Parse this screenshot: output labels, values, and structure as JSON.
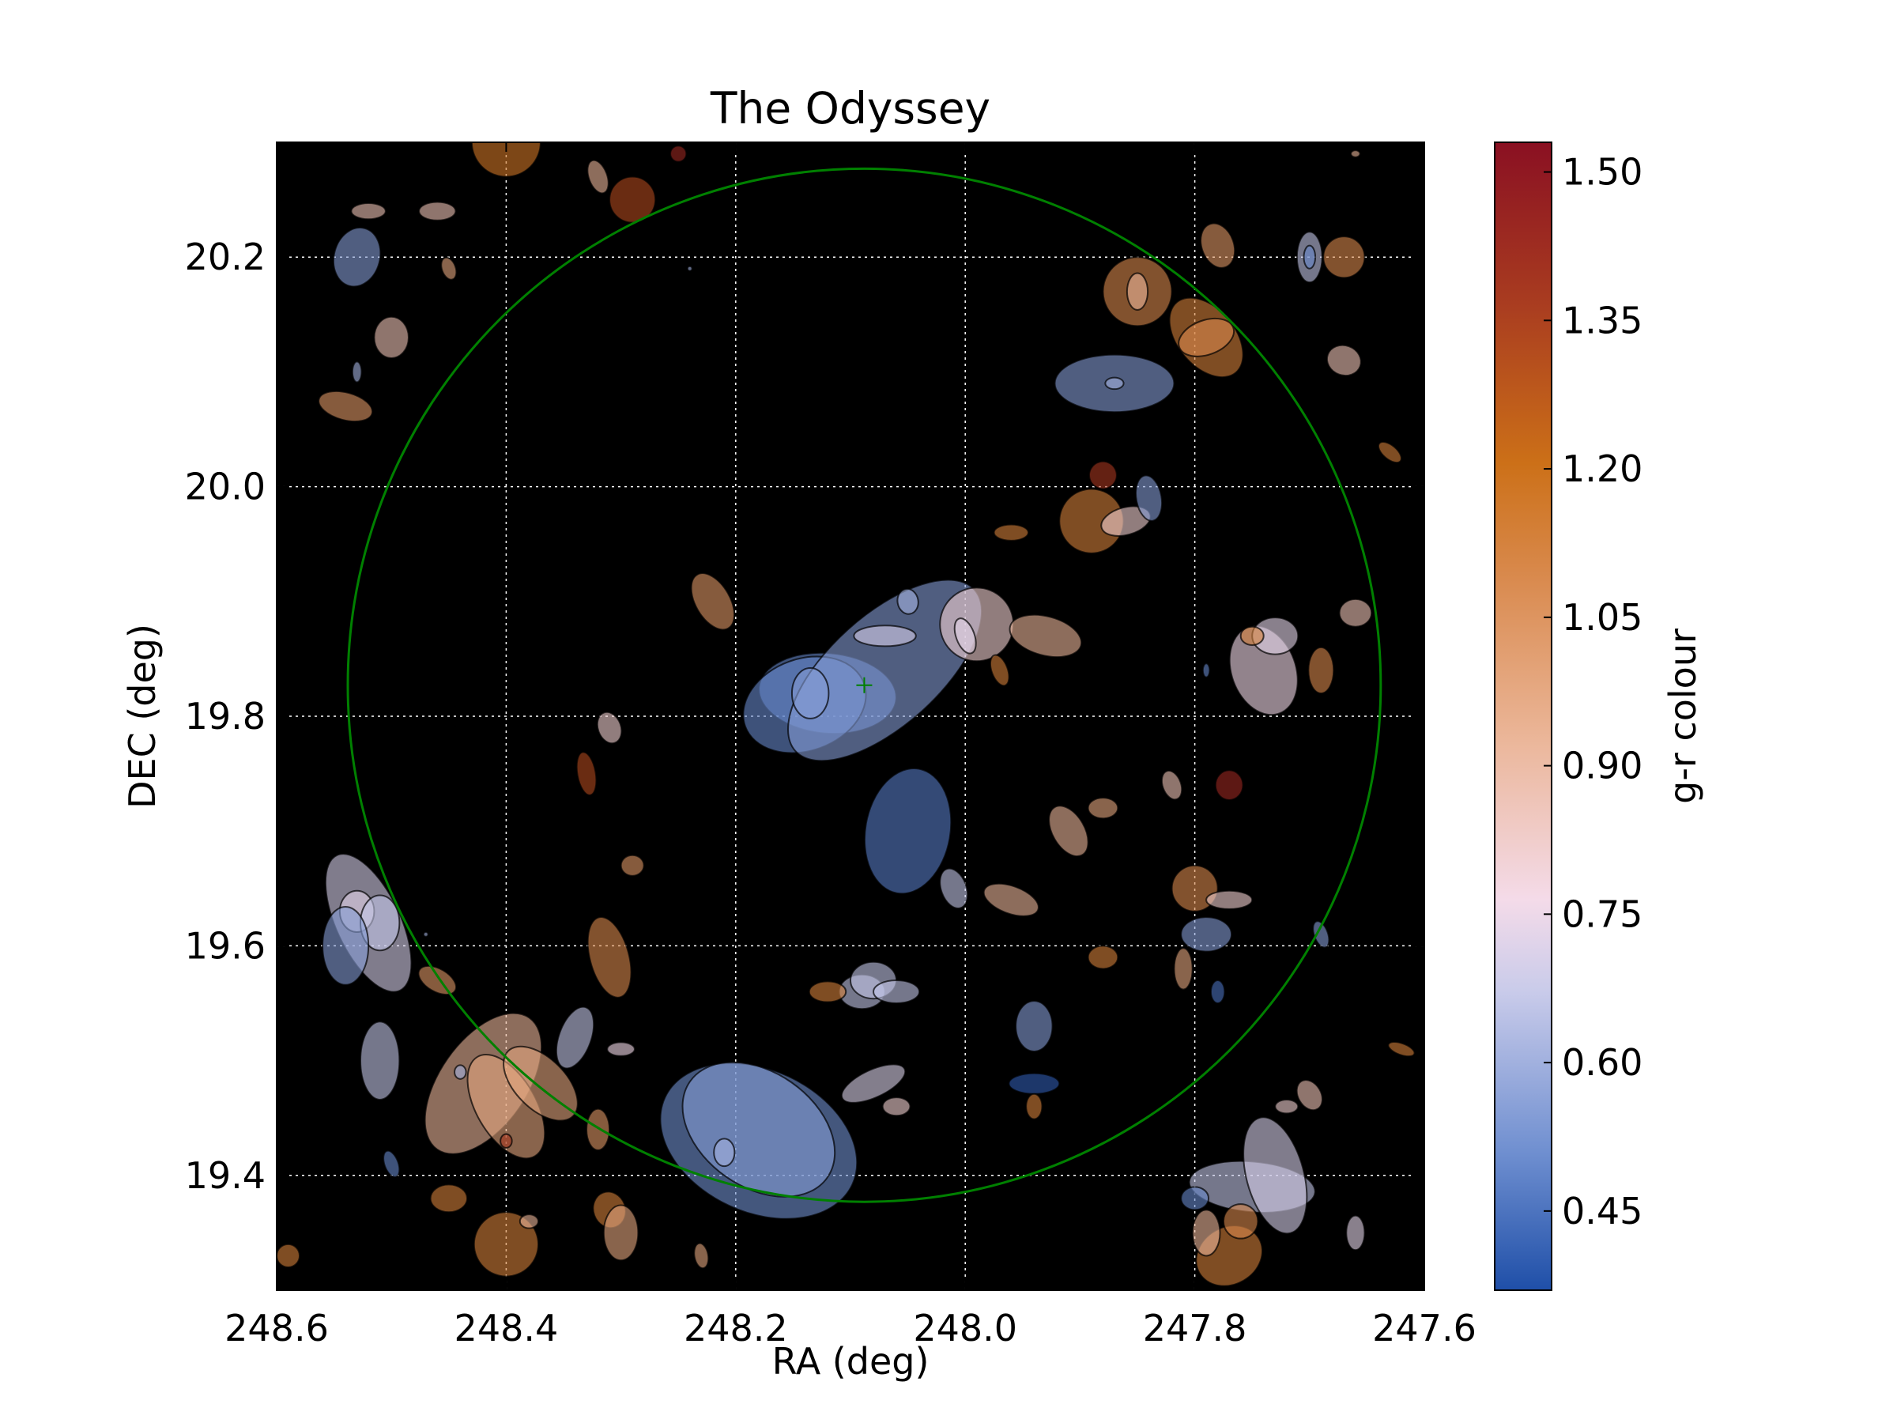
{
  "chart_data": {
    "type": "scatter",
    "title": "The Odyssey",
    "xlabel": "RA (deg)",
    "ylabel": "DEC (deg)",
    "xlim": [
      248.6,
      247.6
    ],
    "ylim": [
      19.3,
      20.3
    ],
    "x_ticks": [
      "248.6",
      "248.4",
      "248.2",
      "248.0",
      "247.8",
      "247.6"
    ],
    "y_ticks": [
      "19.4",
      "19.6",
      "19.8",
      "20.0",
      "20.2"
    ],
    "grid": true,
    "plot_background": "#000000",
    "colorbar": {
      "label": "g-r colour",
      "range": [
        0.37,
        1.53
      ],
      "ticks": [
        "0.45",
        "0.60",
        "0.75",
        "0.90",
        "1.05",
        "1.20",
        "1.35",
        "1.50"
      ],
      "colormap": [
        "#1f4fa8",
        "#6f8fd0",
        "#c9cbea",
        "#f4dbe9",
        "#ebb699",
        "#d98a4e",
        "#cc7018",
        "#a93c20",
        "#8a1022"
      ]
    },
    "search_circle": {
      "center_ra": 248.088,
      "center_dec": 19.827,
      "radius_deg": 0.45,
      "color": "#008000"
    },
    "center_marker": {
      "ra": 248.088,
      "dec": 19.827,
      "marker": "+"
    },
    "galaxies": [
      {
        "ra": 248.12,
        "dec": 19.82,
        "a": 0.06,
        "b": 0.035,
        "angle": -5,
        "gr": 0.5
      },
      {
        "ra": 248.14,
        "dec": 19.81,
        "a": 0.055,
        "b": 0.04,
        "angle": 20,
        "gr": 0.5
      },
      {
        "ra": 248.07,
        "dec": 19.84,
        "a": 0.105,
        "b": 0.048,
        "angle": 42,
        "gr": 0.55
      },
      {
        "ra": 248.07,
        "dec": 19.87,
        "a": 0.027,
        "b": 0.009,
        "angle": 0,
        "gr": 0.7
      },
      {
        "ra": 248.135,
        "dec": 19.82,
        "a": 0.016,
        "b": 0.022,
        "angle": 0,
        "gr": 0.55
      },
      {
        "ra": 248.05,
        "dec": 19.7,
        "a": 0.037,
        "b": 0.055,
        "angle": -10,
        "gr": 0.47
      },
      {
        "ra": 248.18,
        "dec": 19.43,
        "a": 0.09,
        "b": 0.062,
        "angle": -25,
        "gr": 0.52
      },
      {
        "ra": 248.18,
        "dec": 19.44,
        "a": 0.073,
        "b": 0.05,
        "angle": -35,
        "gr": 0.55
      },
      {
        "ra": 248.21,
        "dec": 19.42,
        "a": 0.009,
        "b": 0.012,
        "angle": 0,
        "gr": 0.6
      },
      {
        "ra": 248.08,
        "dec": 19.48,
        "a": 0.03,
        "b": 0.012,
        "angle": 25,
        "gr": 0.72
      },
      {
        "ra": 248.06,
        "dec": 19.46,
        "a": 0.012,
        "b": 0.008,
        "angle": 0,
        "gr": 0.85
      },
      {
        "ra": 247.87,
        "dec": 20.09,
        "a": 0.052,
        "b": 0.025,
        "angle": 0,
        "gr": 0.55
      },
      {
        "ra": 247.87,
        "dec": 20.09,
        "a": 0.008,
        "b": 0.005,
        "angle": 0,
        "gr": 0.6
      },
      {
        "ra": 247.85,
        "dec": 20.17,
        "a": 0.03,
        "b": 0.03,
        "angle": 0,
        "gr": 1.1
      },
      {
        "ra": 247.85,
        "dec": 20.17,
        "a": 0.009,
        "b": 0.016,
        "angle": 0,
        "gr": 0.95
      },
      {
        "ra": 247.79,
        "dec": 20.13,
        "a": 0.025,
        "b": 0.04,
        "angle": 40,
        "gr": 1.15
      },
      {
        "ra": 247.79,
        "dec": 20.13,
        "a": 0.025,
        "b": 0.015,
        "angle": 20,
        "gr": 1.1
      },
      {
        "ra": 247.78,
        "dec": 20.21,
        "a": 0.014,
        "b": 0.02,
        "angle": 20,
        "gr": 1.05
      },
      {
        "ra": 247.7,
        "dec": 20.2,
        "a": 0.011,
        "b": 0.022,
        "angle": 0,
        "gr": 0.65
      },
      {
        "ra": 247.7,
        "dec": 20.2,
        "a": 0.005,
        "b": 0.01,
        "angle": 0,
        "gr": 0.5
      },
      {
        "ra": 247.67,
        "dec": 20.2,
        "a": 0.018,
        "b": 0.018,
        "angle": 0,
        "gr": 1.1
      },
      {
        "ra": 247.67,
        "dec": 20.11,
        "a": 0.015,
        "b": 0.013,
        "angle": -20,
        "gr": 0.9
      },
      {
        "ra": 247.63,
        "dec": 20.03,
        "a": 0.012,
        "b": 0.006,
        "angle": -40,
        "gr": 1.15
      },
      {
        "ra": 247.88,
        "dec": 20.01,
        "a": 0.012,
        "b": 0.012,
        "angle": -30,
        "gr": 1.4
      },
      {
        "ra": 247.89,
        "dec": 19.97,
        "a": 0.028,
        "b": 0.028,
        "angle": 0,
        "gr": 1.15
      },
      {
        "ra": 247.86,
        "dec": 19.97,
        "a": 0.022,
        "b": 0.012,
        "angle": 15,
        "gr": 0.85
      },
      {
        "ra": 247.84,
        "dec": 19.99,
        "a": 0.011,
        "b": 0.02,
        "angle": 10,
        "gr": 0.55
      },
      {
        "ra": 247.96,
        "dec": 19.96,
        "a": 0.015,
        "b": 0.007,
        "angle": 0,
        "gr": 1.15
      },
      {
        "ra": 247.99,
        "dec": 19.88,
        "a": 0.032,
        "b": 0.032,
        "angle": 0,
        "gr": 0.85
      },
      {
        "ra": 248.0,
        "dec": 19.87,
        "a": 0.008,
        "b": 0.016,
        "angle": 20,
        "gr": 0.75
      },
      {
        "ra": 248.05,
        "dec": 19.9,
        "a": 0.009,
        "b": 0.011,
        "angle": 10,
        "gr": 0.6
      },
      {
        "ra": 247.93,
        "dec": 19.87,
        "a": 0.032,
        "b": 0.017,
        "angle": -15,
        "gr": 0.95
      },
      {
        "ra": 247.97,
        "dec": 19.84,
        "a": 0.007,
        "b": 0.014,
        "angle": 20,
        "gr": 1.15
      },
      {
        "ra": 247.74,
        "dec": 19.84,
        "a": 0.028,
        "b": 0.04,
        "angle": 20,
        "gr": 0.8
      },
      {
        "ra": 247.73,
        "dec": 19.87,
        "a": 0.02,
        "b": 0.016,
        "angle": 0,
        "gr": 0.75
      },
      {
        "ra": 247.75,
        "dec": 19.87,
        "a": 0.01,
        "b": 0.008,
        "angle": 0,
        "gr": 1.15
      },
      {
        "ra": 247.69,
        "dec": 19.84,
        "a": 0.011,
        "b": 0.02,
        "angle": 0,
        "gr": 1.1
      },
      {
        "ra": 247.66,
        "dec": 19.89,
        "a": 0.014,
        "b": 0.012,
        "angle": 0,
        "gr": 0.9
      },
      {
        "ra": 247.79,
        "dec": 19.84,
        "a": 0.003,
        "b": 0.006,
        "angle": 0,
        "gr": 0.5
      },
      {
        "ra": 248.22,
        "dec": 19.9,
        "a": 0.015,
        "b": 0.027,
        "angle": 30,
        "gr": 1.05
      },
      {
        "ra": 248.31,
        "dec": 19.79,
        "a": 0.01,
        "b": 0.014,
        "angle": 20,
        "gr": 0.85
      },
      {
        "ra": 248.33,
        "dec": 19.75,
        "a": 0.008,
        "b": 0.019,
        "angle": 10,
        "gr": 1.35
      },
      {
        "ra": 248.29,
        "dec": 19.67,
        "a": 0.01,
        "b": 0.009,
        "angle": 0,
        "gr": 1.05
      },
      {
        "ra": 248.31,
        "dec": 19.59,
        "a": 0.017,
        "b": 0.036,
        "angle": 15,
        "gr": 1.1
      },
      {
        "ra": 248.34,
        "dec": 19.52,
        "a": 0.014,
        "b": 0.028,
        "angle": -20,
        "gr": 0.65
      },
      {
        "ra": 248.3,
        "dec": 19.51,
        "a": 0.012,
        "b": 0.006,
        "angle": 0,
        "gr": 0.8
      },
      {
        "ra": 248.52,
        "dec": 19.62,
        "a": 0.028,
        "b": 0.065,
        "angle": 25,
        "gr": 0.7
      },
      {
        "ra": 248.53,
        "dec": 19.63,
        "a": 0.015,
        "b": 0.018,
        "angle": 0,
        "gr": 0.75
      },
      {
        "ra": 248.51,
        "dec": 19.62,
        "a": 0.017,
        "b": 0.024,
        "angle": 0,
        "gr": 0.65
      },
      {
        "ra": 248.54,
        "dec": 19.6,
        "a": 0.02,
        "b": 0.034,
        "angle": 0,
        "gr": 0.55
      },
      {
        "ra": 248.46,
        "dec": 19.57,
        "a": 0.01,
        "b": 0.018,
        "angle": 60,
        "gr": 1.05
      },
      {
        "ra": 248.51,
        "dec": 19.5,
        "a": 0.017,
        "b": 0.034,
        "angle": 0,
        "gr": 0.65
      },
      {
        "ra": 248.42,
        "dec": 19.48,
        "a": 0.038,
        "b": 0.07,
        "angle": -35,
        "gr": 0.95
      },
      {
        "ra": 248.4,
        "dec": 19.46,
        "a": 0.026,
        "b": 0.05,
        "angle": 30,
        "gr": 1.0
      },
      {
        "ra": 248.37,
        "dec": 19.48,
        "a": 0.022,
        "b": 0.04,
        "angle": 45,
        "gr": 1.0
      },
      {
        "ra": 248.44,
        "dec": 19.49,
        "a": 0.005,
        "b": 0.006,
        "angle": 0,
        "gr": 0.6
      },
      {
        "ra": 248.4,
        "dec": 19.43,
        "a": 0.005,
        "b": 0.006,
        "angle": 0,
        "gr": 1.4
      },
      {
        "ra": 248.4,
        "dec": 19.34,
        "a": 0.028,
        "b": 0.028,
        "angle": 0,
        "gr": 1.15
      },
      {
        "ra": 248.38,
        "dec": 19.36,
        "a": 0.008,
        "b": 0.006,
        "angle": 0,
        "gr": 0.95
      },
      {
        "ra": 248.5,
        "dec": 19.41,
        "a": 0.006,
        "b": 0.012,
        "angle": 20,
        "gr": 0.5
      },
      {
        "ra": 248.45,
        "dec": 19.38,
        "a": 0.016,
        "b": 0.012,
        "angle": 0,
        "gr": 1.15
      },
      {
        "ra": 248.31,
        "dec": 19.37,
        "a": 0.014,
        "b": 0.016,
        "angle": 20,
        "gr": 1.15
      },
      {
        "ra": 248.3,
        "dec": 19.35,
        "a": 0.015,
        "b": 0.024,
        "angle": 0,
        "gr": 1.0
      },
      {
        "ra": 248.32,
        "dec": 19.44,
        "a": 0.01,
        "b": 0.018,
        "angle": 0,
        "gr": 1.05
      },
      {
        "ra": 248.23,
        "dec": 19.33,
        "a": 0.006,
        "b": 0.011,
        "angle": 10,
        "gr": 1.0
      },
      {
        "ra": 248.59,
        "dec": 19.33,
        "a": 0.01,
        "b": 0.01,
        "angle": 0,
        "gr": 1.15
      },
      {
        "ra": 248.53,
        "dec": 20.2,
        "a": 0.02,
        "b": 0.026,
        "angle": -15,
        "gr": 0.55
      },
      {
        "ra": 248.52,
        "dec": 20.24,
        "a": 0.015,
        "b": 0.007,
        "angle": 0,
        "gr": 0.9
      },
      {
        "ra": 248.46,
        "dec": 20.24,
        "a": 0.016,
        "b": 0.008,
        "angle": 0,
        "gr": 0.9
      },
      {
        "ra": 248.45,
        "dec": 20.19,
        "a": 0.006,
        "b": 0.01,
        "angle": 20,
        "gr": 1.0
      },
      {
        "ra": 248.5,
        "dec": 20.13,
        "a": 0.015,
        "b": 0.018,
        "angle": 0,
        "gr": 0.9
      },
      {
        "ra": 248.53,
        "dec": 20.1,
        "a": 0.004,
        "b": 0.009,
        "angle": 0,
        "gr": 0.6
      },
      {
        "ra": 248.54,
        "dec": 20.07,
        "a": 0.024,
        "b": 0.012,
        "angle": -15,
        "gr": 1.05
      },
      {
        "ra": 248.4,
        "dec": 20.3,
        "a": 0.03,
        "b": 0.03,
        "angle": 0,
        "gr": 1.2
      },
      {
        "ra": 248.29,
        "dec": 20.25,
        "a": 0.02,
        "b": 0.02,
        "angle": 0,
        "gr": 1.35
      },
      {
        "ra": 248.32,
        "dec": 20.27,
        "a": 0.008,
        "b": 0.015,
        "angle": 20,
        "gr": 0.95
      },
      {
        "ra": 248.25,
        "dec": 20.29,
        "a": 0.007,
        "b": 0.007,
        "angle": 0,
        "gr": 1.45
      },
      {
        "ra": 247.96,
        "dec": 19.64,
        "a": 0.025,
        "b": 0.012,
        "angle": -20,
        "gr": 0.95
      },
      {
        "ra": 248.01,
        "dec": 19.65,
        "a": 0.011,
        "b": 0.018,
        "angle": 20,
        "gr": 0.65
      },
      {
        "ra": 247.91,
        "dec": 19.7,
        "a": 0.014,
        "b": 0.024,
        "angle": 30,
        "gr": 0.95
      },
      {
        "ra": 247.88,
        "dec": 19.72,
        "a": 0.013,
        "b": 0.009,
        "angle": 0,
        "gr": 1.0
      },
      {
        "ra": 247.82,
        "dec": 19.74,
        "a": 0.008,
        "b": 0.013,
        "angle": 20,
        "gr": 0.9
      },
      {
        "ra": 247.77,
        "dec": 19.74,
        "a": 0.012,
        "b": 0.013,
        "angle": 0,
        "gr": 1.45
      },
      {
        "ra": 247.8,
        "dec": 19.65,
        "a": 0.02,
        "b": 0.02,
        "angle": 0,
        "gr": 1.1
      },
      {
        "ra": 247.77,
        "dec": 19.64,
        "a": 0.02,
        "b": 0.008,
        "angle": 0,
        "gr": 0.85
      },
      {
        "ra": 247.79,
        "dec": 19.61,
        "a": 0.022,
        "b": 0.015,
        "angle": 0,
        "gr": 0.55
      },
      {
        "ra": 247.69,
        "dec": 19.61,
        "a": 0.006,
        "b": 0.012,
        "angle": 20,
        "gr": 0.55
      },
      {
        "ra": 247.81,
        "dec": 19.58,
        "a": 0.008,
        "b": 0.018,
        "angle": 0,
        "gr": 1.0
      },
      {
        "ra": 247.78,
        "dec": 19.56,
        "a": 0.006,
        "b": 0.01,
        "angle": 0,
        "gr": 0.45
      },
      {
        "ra": 247.88,
        "dec": 19.59,
        "a": 0.013,
        "b": 0.01,
        "angle": 0,
        "gr": 1.15
      },
      {
        "ra": 247.94,
        "dec": 19.53,
        "a": 0.016,
        "b": 0.022,
        "angle": 0,
        "gr": 0.55
      },
      {
        "ra": 247.94,
        "dec": 19.48,
        "a": 0.022,
        "b": 0.009,
        "angle": 0,
        "gr": 0.4
      },
      {
        "ra": 247.94,
        "dec": 19.46,
        "a": 0.007,
        "b": 0.011,
        "angle": 0,
        "gr": 1.15
      },
      {
        "ra": 248.09,
        "dec": 19.56,
        "a": 0.02,
        "b": 0.015,
        "angle": 0,
        "gr": 0.65
      },
      {
        "ra": 248.08,
        "dec": 19.57,
        "a": 0.02,
        "b": 0.016,
        "angle": 0,
        "gr": 0.65
      },
      {
        "ra": 248.06,
        "dec": 19.56,
        "a": 0.02,
        "b": 0.01,
        "angle": 0,
        "gr": 0.65
      },
      {
        "ra": 248.12,
        "dec": 19.56,
        "a": 0.016,
        "b": 0.009,
        "angle": 0,
        "gr": 1.15
      },
      {
        "ra": 247.75,
        "dec": 19.39,
        "a": 0.055,
        "b": 0.022,
        "angle": -5,
        "gr": 0.65
      },
      {
        "ra": 247.73,
        "dec": 19.4,
        "a": 0.025,
        "b": 0.052,
        "angle": 15,
        "gr": 0.7
      },
      {
        "ra": 247.77,
        "dec": 19.33,
        "a": 0.03,
        "b": 0.025,
        "angle": 30,
        "gr": 1.15
      },
      {
        "ra": 247.79,
        "dec": 19.35,
        "a": 0.012,
        "b": 0.02,
        "angle": 0,
        "gr": 0.95
      },
      {
        "ra": 247.8,
        "dec": 19.38,
        "a": 0.012,
        "b": 0.01,
        "angle": 0,
        "gr": 0.5
      },
      {
        "ra": 247.76,
        "dec": 19.36,
        "a": 0.015,
        "b": 0.015,
        "angle": 0,
        "gr": 1.1
      },
      {
        "ra": 247.72,
        "dec": 19.46,
        "a": 0.01,
        "b": 0.006,
        "angle": 0,
        "gr": 0.85
      },
      {
        "ra": 247.7,
        "dec": 19.47,
        "a": 0.01,
        "b": 0.014,
        "angle": 30,
        "gr": 0.9
      },
      {
        "ra": 247.66,
        "dec": 19.35,
        "a": 0.008,
        "b": 0.015,
        "angle": 0,
        "gr": 0.75
      },
      {
        "ra": 247.62,
        "dec": 19.51,
        "a": 0.012,
        "b": 0.005,
        "angle": -20,
        "gr": 1.15
      },
      {
        "ra": 247.66,
        "dec": 20.29,
        "a": 0.004,
        "b": 0.003,
        "angle": 0,
        "gr": 0.95
      },
      {
        "ra": 248.47,
        "dec": 19.61,
        "a": 0.002,
        "b": 0.002,
        "angle": 0,
        "gr": 0.6
      },
      {
        "ra": 248.24,
        "dec": 20.19,
        "a": 0.002,
        "b": 0.002,
        "angle": 0,
        "gr": 0.6
      }
    ]
  }
}
